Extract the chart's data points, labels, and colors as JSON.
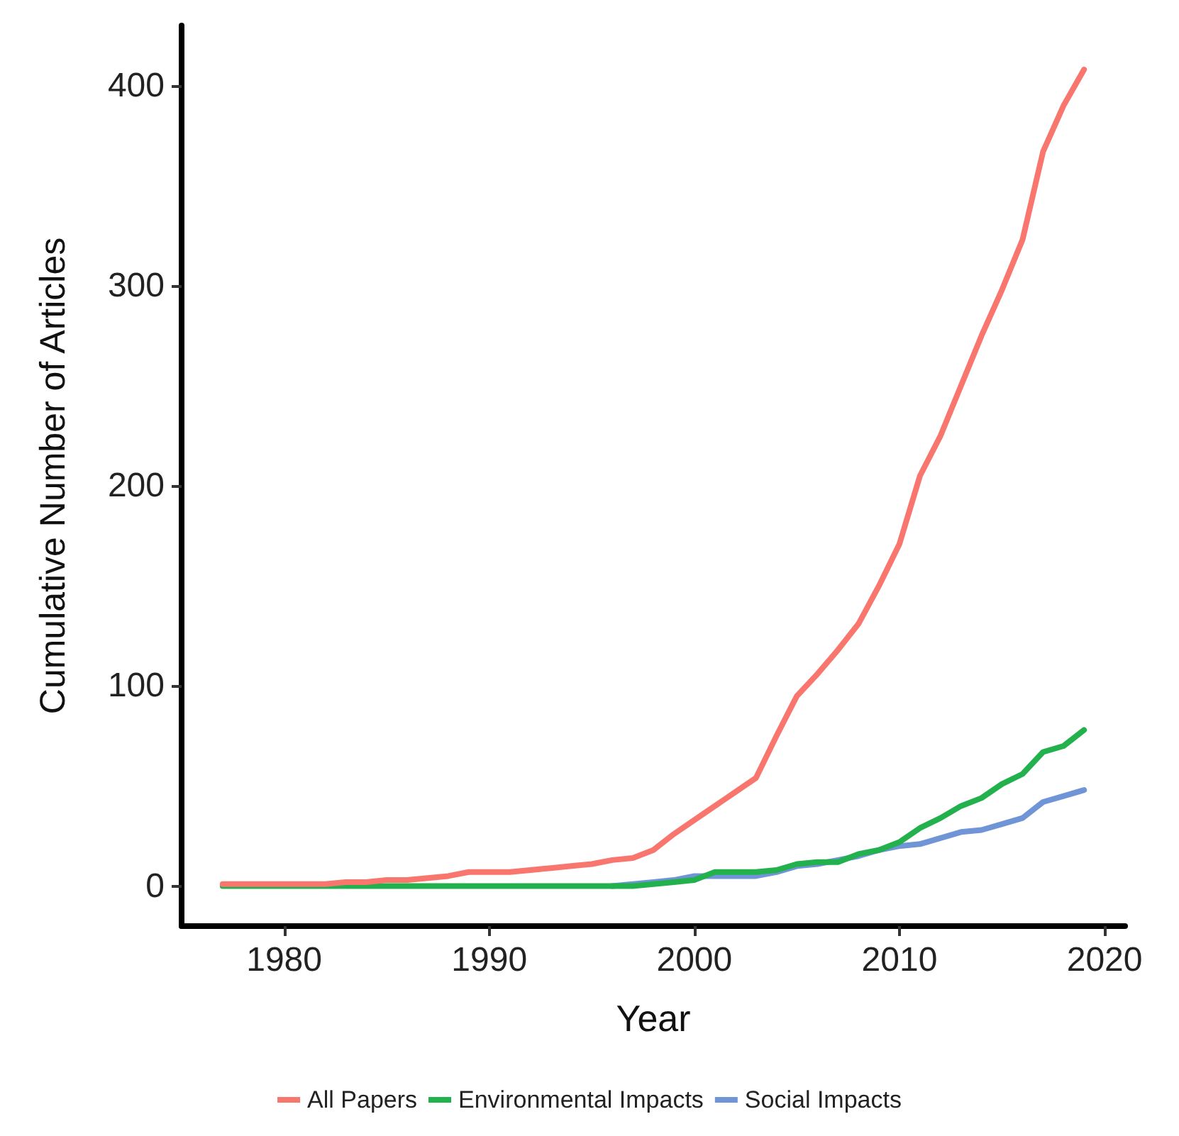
{
  "chart_data": {
    "type": "line",
    "xlabel": "Year",
    "ylabel": "Cumulative Number of Articles",
    "x": [
      1977,
      1978,
      1979,
      1980,
      1981,
      1982,
      1983,
      1984,
      1985,
      1986,
      1987,
      1988,
      1989,
      1990,
      1991,
      1992,
      1993,
      1994,
      1995,
      1996,
      1997,
      1998,
      1999,
      2000,
      2001,
      2002,
      2003,
      2004,
      2005,
      2006,
      2007,
      2008,
      2009,
      2010,
      2011,
      2012,
      2013,
      2014,
      2015,
      2016,
      2017,
      2018,
      2019
    ],
    "series": [
      {
        "name": "All Papers",
        "color": "#f8766d",
        "values": [
          1,
          1,
          1,
          1,
          1,
          1,
          2,
          2,
          3,
          3,
          4,
          5,
          7,
          7,
          7,
          8,
          9,
          10,
          11,
          13,
          14,
          18,
          26,
          33,
          40,
          47,
          54,
          75,
          95,
          106,
          118,
          131,
          150,
          171,
          205,
          225,
          250,
          275,
          298,
          323,
          367,
          390,
          408
        ]
      },
      {
        "name": "Environmental Impacts",
        "color": "#22b14c",
        "values": [
          0,
          0,
          0,
          0,
          0,
          0,
          0,
          0,
          0,
          0,
          0,
          0,
          0,
          0,
          0,
          0,
          0,
          0,
          0,
          0,
          0,
          1,
          2,
          3,
          7,
          7,
          7,
          8,
          11,
          12,
          12,
          16,
          18,
          22,
          29,
          34,
          40,
          44,
          51,
          56,
          67,
          70,
          78
        ]
      },
      {
        "name": "Social Impacts",
        "color": "#6f95d6",
        "values": [
          null,
          null,
          null,
          null,
          null,
          null,
          null,
          null,
          null,
          null,
          null,
          null,
          null,
          null,
          null,
          null,
          null,
          null,
          null,
          0,
          1,
          2,
          3,
          5,
          5,
          5,
          5,
          7,
          10,
          11,
          13,
          15,
          18,
          20,
          21,
          24,
          27,
          28,
          31,
          34,
          42,
          45,
          48
        ]
      }
    ],
    "xlim": [
      1975,
      2021
    ],
    "xticks": [
      1980,
      1990,
      2000,
      2010,
      2020
    ],
    "ylim": [
      -20,
      430
    ],
    "yticks": [
      0,
      100,
      200,
      300,
      400
    ],
    "grid": false,
    "legend": "bottom",
    "marker": "none",
    "line_style": "solid"
  }
}
